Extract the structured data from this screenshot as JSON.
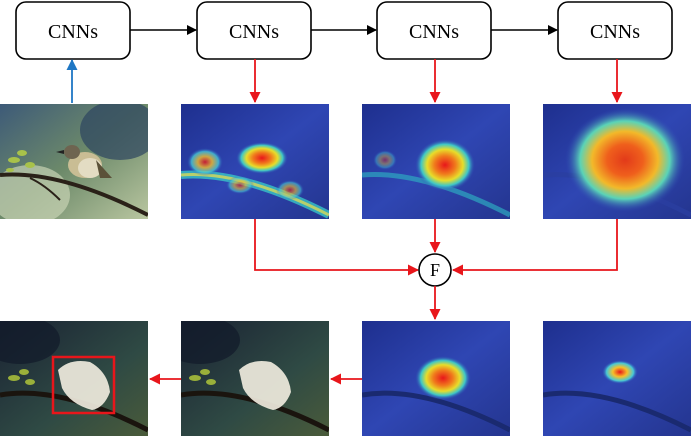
{
  "nodes": {
    "cnn1": "CNNs",
    "cnn2": "CNNs",
    "cnn3": "CNNs",
    "cnn4": "CNNs",
    "fusion": "F"
  },
  "colors": {
    "forward_arrow": "#000000",
    "input_arrow": "#1f77c4",
    "map_arrow": "#e8161b",
    "bbox": "#e8161b"
  },
  "images": {
    "input": "bird-photo",
    "cam1": "heatmap-layer1",
    "cam2": "heatmap-layer2",
    "cam3": "heatmap-layer3",
    "fused_map": "fused-heatmap",
    "refined_map": "refined-heatmap",
    "mask": "segmentation-mask",
    "result": "localization-result"
  }
}
